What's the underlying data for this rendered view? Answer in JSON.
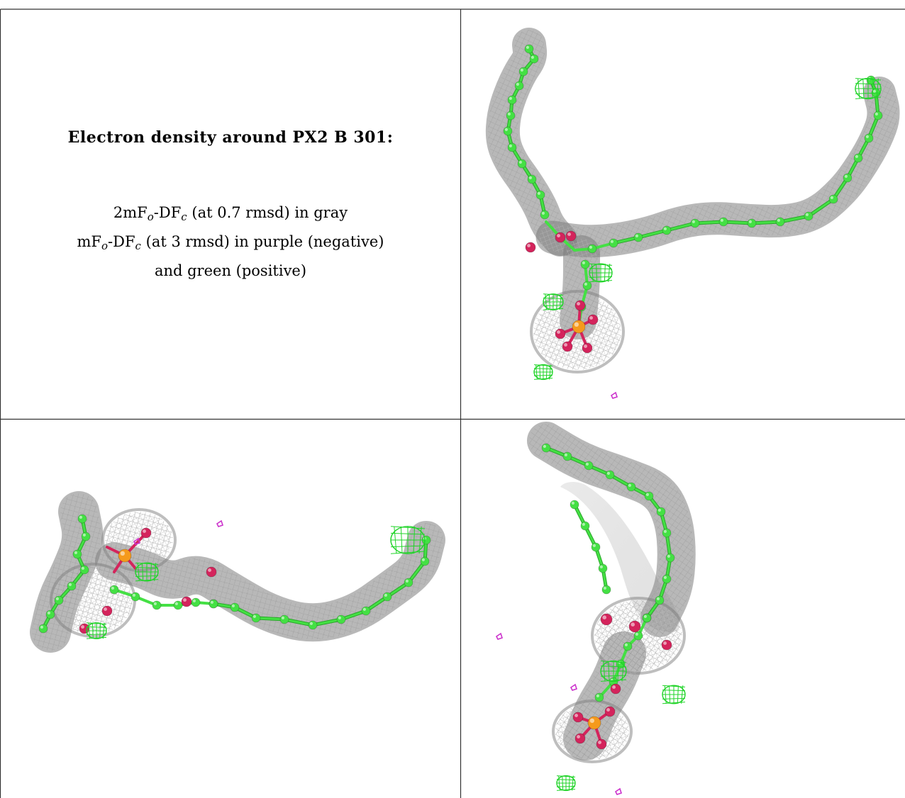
{
  "caption": {
    "title": "Electron density around PX2 B 301:",
    "line1": {
      "pre": "2mF",
      "sub1": "o",
      "mid": "-DF",
      "sub2": "c",
      "post": " (at 0.7 rmsd) in gray"
    },
    "line2": {
      "pre": "mF",
      "sub1": "o",
      "mid": "-DF",
      "sub2": "c",
      "post": " (at 3 rmsd) in purple (negative)"
    },
    "line3": "and green (positive)"
  },
  "colors": {
    "mesh_gray": "#a8a8a8",
    "carbon_green": "#44e044",
    "oxygen_red": "#d4245c",
    "phosphorus_orange": "#f59a1c",
    "positive_green": "#22d42a",
    "negative_purple": "#cc33cc"
  },
  "views": [
    "top-right view",
    "bottom-left view",
    "bottom-right view"
  ]
}
